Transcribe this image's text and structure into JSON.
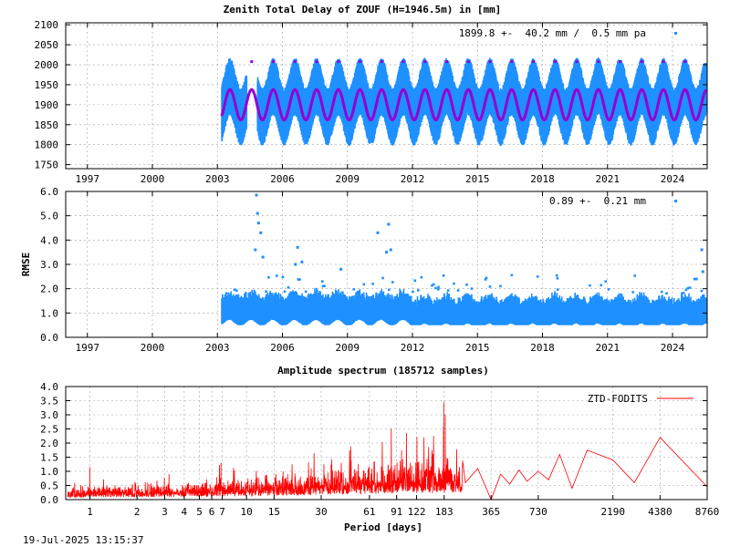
{
  "timestamp": "19-Jul-2025 13:15:37",
  "chart_data": [
    {
      "type": "scatter",
      "title": "Zenith Total Delay of ZOUF (H=1946.5m) in [mm]",
      "annotation": "1899.8 +-  40.2 mm /  0.5 mm pa",
      "xlabel": "",
      "ylabel": "",
      "xlim": [
        1996,
        2025.6
      ],
      "ylim": [
        1740,
        2105
      ],
      "x_ticks": [
        "1997",
        "2000",
        "2003",
        "2006",
        "2009",
        "2012",
        "2015",
        "2018",
        "2021",
        "2024"
      ],
      "y_ticks": [
        "1750",
        "1800",
        "1850",
        "1900",
        "1950",
        "2000",
        "2050",
        "2100"
      ],
      "grid": true,
      "data_start": 2003.2,
      "data_end": 2025.55,
      "mean": 1899.8,
      "std": 40.2,
      "trend_mm_per_year": 0.5,
      "seasonal_amplitude": 38,
      "seasonal_peak_phase": 0.58,
      "series_colors": {
        "observations": "#1e90ff",
        "fit": "#9400d3"
      }
    },
    {
      "type": "scatter",
      "title": "",
      "annotation": "0.89 +-  0.21 mm",
      "xlabel": "",
      "ylabel": "RMSE",
      "xlim": [
        1996,
        2025.6
      ],
      "ylim": [
        0,
        6
      ],
      "x_ticks": [
        "1997",
        "2000",
        "2003",
        "2006",
        "2009",
        "2012",
        "2015",
        "2018",
        "2021",
        "2024"
      ],
      "y_ticks": [
        "0.0",
        "1.0",
        "2.0",
        "3.0",
        "4.0",
        "5.0",
        "6.0"
      ],
      "grid": true,
      "mean": 0.89,
      "std": 0.21,
      "outliers": [
        {
          "x": 2004.8,
          "y": 5.85
        },
        {
          "x": 2004.85,
          "y": 5.1
        },
        {
          "x": 2004.9,
          "y": 4.7
        },
        {
          "x": 2005.0,
          "y": 4.3
        },
        {
          "x": 2004.75,
          "y": 3.6
        },
        {
          "x": 2005.1,
          "y": 3.3
        },
        {
          "x": 2006.7,
          "y": 3.7
        },
        {
          "x": 2006.6,
          "y": 3.0
        },
        {
          "x": 2006.9,
          "y": 3.1
        },
        {
          "x": 2008.7,
          "y": 2.8
        },
        {
          "x": 2010.4,
          "y": 4.3
        },
        {
          "x": 2010.9,
          "y": 4.65
        },
        {
          "x": 2010.8,
          "y": 3.5
        },
        {
          "x": 2011.0,
          "y": 3.6
        },
        {
          "x": 2025.35,
          "y": 3.6
        },
        {
          "x": 2025.4,
          "y": 2.7
        },
        {
          "x": 2025.1,
          "y": 2.4
        }
      ],
      "series_colors": {
        "observations": "#1e90ff"
      }
    },
    {
      "type": "line",
      "title": "Amplitude spectrum (185712 samples)",
      "xlabel": "Period [days]",
      "ylabel": "",
      "xscale": "log",
      "xlim": [
        0.7,
        8760
      ],
      "ylim": [
        0,
        4.0
      ],
      "x_ticks": [
        "1",
        "2",
        "3",
        "4",
        "5",
        "6",
        "7",
        "10",
        "15",
        "30",
        "61",
        "91",
        "122",
        "183",
        "365",
        "730",
        "2190",
        "4380",
        "8760"
      ],
      "y_ticks": [
        "0.0",
        "0.5",
        "1.0",
        "1.5",
        "2.0",
        "2.5",
        "3.0",
        "3.5",
        "4.0"
      ],
      "grid": true,
      "legend": "top-right",
      "series": [
        {
          "name": "ZTD-FODITS",
          "color": "#ff0000",
          "peaks": [
            {
              "x": 1.0,
              "y": 1.15
            },
            {
              "x": 182,
              "y": 3.45
            },
            {
              "x": 186,
              "y": 3.0
            },
            {
              "x": 4380,
              "y": 2.2
            }
          ],
          "long_period_points": [
            {
              "x": 250,
              "y": 0.6
            },
            {
              "x": 300,
              "y": 1.1
            },
            {
              "x": 365,
              "y": 0.0
            },
            {
              "x": 420,
              "y": 0.9
            },
            {
              "x": 480,
              "y": 0.55
            },
            {
              "x": 550,
              "y": 1.05
            },
            {
              "x": 620,
              "y": 0.65
            },
            {
              "x": 730,
              "y": 1.0
            },
            {
              "x": 850,
              "y": 0.7
            },
            {
              "x": 1000,
              "y": 1.6
            },
            {
              "x": 1200,
              "y": 0.4
            },
            {
              "x": 1500,
              "y": 1.75
            },
            {
              "x": 2190,
              "y": 1.4
            },
            {
              "x": 3000,
              "y": 0.6
            },
            {
              "x": 4380,
              "y": 2.2
            },
            {
              "x": 8760,
              "y": 0.45
            }
          ]
        }
      ]
    }
  ]
}
